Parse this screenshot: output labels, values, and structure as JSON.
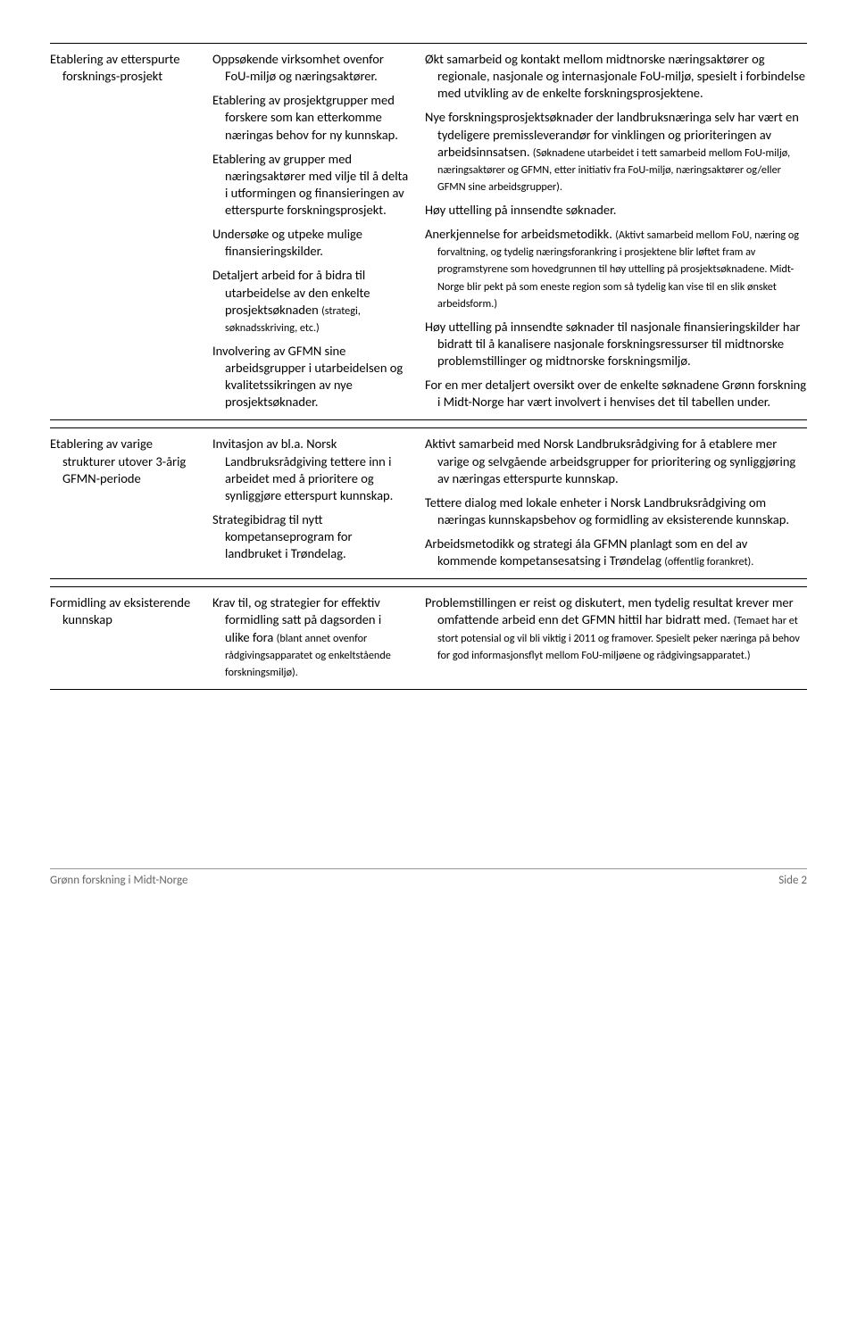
{
  "rows": [
    {
      "leftTitle": "Etablering av etterspurte forsknings-prosjekt",
      "middle": [
        {
          "main": "Oppsøkende virksomhet ovenfor FoU-miljø og næringsaktører."
        },
        {
          "main": "Etablering av prosjektgrupper med forskere som kan etterkomme næringas behov for ny kunnskap."
        },
        {
          "main": "Etablering av grupper med næringsaktører med vilje til å delta i utformingen og finansieringen av etterspurte forskningsprosjekt."
        },
        {
          "main": "Undersøke og utpeke mulige finansieringskilder."
        },
        {
          "main": "Detaljert arbeid for å bidra til utarbeidelse av den enkelte prosjektsøknaden ",
          "small": "(strategi, søknadsskriving, etc.)"
        },
        {
          "main": "Involvering av GFMN sine arbeidsgrupper i utarbeidelsen og kvalitetssikringen av nye prosjektsøknader."
        }
      ],
      "right": [
        {
          "main": "Økt samarbeid og kontakt mellom midtnorske næringsaktører og regionale, nasjonale og internasjonale FoU-miljø, spesielt i forbindelse med utvikling av de enkelte forskningsprosjektene."
        },
        {
          "main": "Nye forskningsprosjektsøknader der landbruksnæringa selv har vært en tydeligere premissleverandør for vinklingen og prioriteringen av arbeidsinnsatsen. ",
          "small": "(Søknadene utarbeidet i tett samarbeid mellom FoU-miljø, næringsaktører og GFMN, etter initiativ fra FoU-miljø, næringsaktører og/eller GFMN sine arbeidsgrupper)."
        },
        {
          "main": "Høy uttelling på innsendte søknader."
        },
        {
          "main": "Anerkjennelse for arbeidsmetodikk. ",
          "small": "(Aktivt samarbeid mellom FoU, næring og forvaltning, og tydelig næringsforankring i prosjektene blir løftet fram av programstyrene som hovedgrunnen til høy uttelling på prosjektsøknadene. Midt-Norge blir pekt på som eneste region som så tydelig kan vise til en slik ønsket arbeidsform.)"
        },
        {
          "main": "Høy uttelling på innsendte søknader til nasjonale finansieringskilder har bidratt til å kanalisere nasjonale forskningsressurser til midtnorske problemstillinger og midtnorske forskningsmiljø."
        },
        {
          "main": "For en mer detaljert oversikt over de enkelte søknadene Grønn forskning i Midt-Norge har vært involvert i henvises det til tabellen under."
        }
      ]
    },
    {
      "leftTitle": "Etablering av varige strukturer utover 3-årig GFMN-periode",
      "middle": [
        {
          "main": "Invitasjon av bl.a. Norsk Landbruksrådgiving tettere inn i arbeidet med å prioritere og synliggjøre etterspurt kunnskap."
        },
        {
          "main": "Strategibidrag til nytt kompetanseprogram for landbruket i Trøndelag."
        }
      ],
      "right": [
        {
          "main": "Aktivt samarbeid med Norsk Landbruksrådgiving for å etablere mer varige og selvgående arbeidsgrupper for prioritering og synliggjøring av næringas etterspurte kunnskap."
        },
        {
          "main": "Tettere dialog med lokale enheter i Norsk Landbruksrådgiving om næringas kunnskapsbehov og formidling av eksisterende kunnskap."
        },
        {
          "main": "Arbeidsmetodikk og strategi ála GFMN planlagt som en del av kommende kompetansesatsing i Trøndelag ",
          "small": "(offentlig forankret)."
        }
      ]
    },
    {
      "leftTitle": "Formidling av eksisterende kunnskap",
      "middle": [
        {
          "main": "Krav til, og strategier for effektiv formidling satt på dagsorden i ulike fora ",
          "small": "(blant annet ovenfor rådgivingsapparatet og enkeltstående forskningsmiljø)."
        }
      ],
      "right": [
        {
          "main": "Problemstillingen er reist og diskutert, men tydelig resultat krever mer omfattende arbeid enn det GFMN hittil har bidratt med. ",
          "small": "(Temaet har et stort potensial og vil bli viktig i 2011 og framover. Spesielt peker næringa på behov for god informasjonsflyt mellom FoU-miljøene og rådgivingsapparatet.)"
        }
      ]
    }
  ],
  "footer": {
    "left": "Grønn forskning i Midt-Norge",
    "right": "Side 2"
  }
}
